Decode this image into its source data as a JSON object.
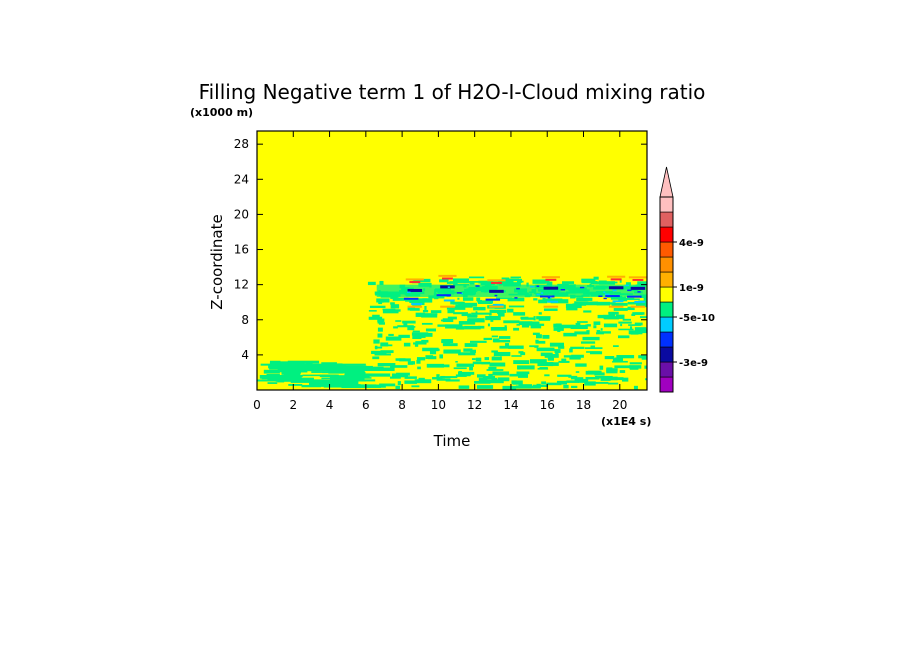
{
  "chart_data": {
    "type": "heatmap",
    "title": "Filling Negative term 1 of H2O-I-Cloud mixing ratio",
    "xlabel": "Time",
    "ylabel": "Z-coordinate",
    "x_unit": "(x1E4 s)",
    "y_unit": "(x1000 m)",
    "xlim": [
      0,
      21.5
    ],
    "ylim": [
      0,
      29.5
    ],
    "xticks": [
      0,
      2,
      4,
      6,
      8,
      10,
      12,
      14,
      16,
      18,
      20
    ],
    "yticks": [
      4,
      8,
      12,
      16,
      20,
      24,
      28
    ],
    "background_color": "#ffff00",
    "colorbar": {
      "colors": [
        "#a000c0",
        "#6a0fa8",
        "#0a0aa0",
        "#0030ff",
        "#00ccff",
        "#00f080",
        "#ffff00",
        "#ffb000",
        "#ff9000",
        "#ff5a00",
        "#ff0000",
        "#e06060",
        "#ffc0c0"
      ],
      "tick_labels": [
        "4e-9",
        "1e-9",
        "-5e-10",
        "-3e-9"
      ],
      "extend": "max"
    }
  }
}
